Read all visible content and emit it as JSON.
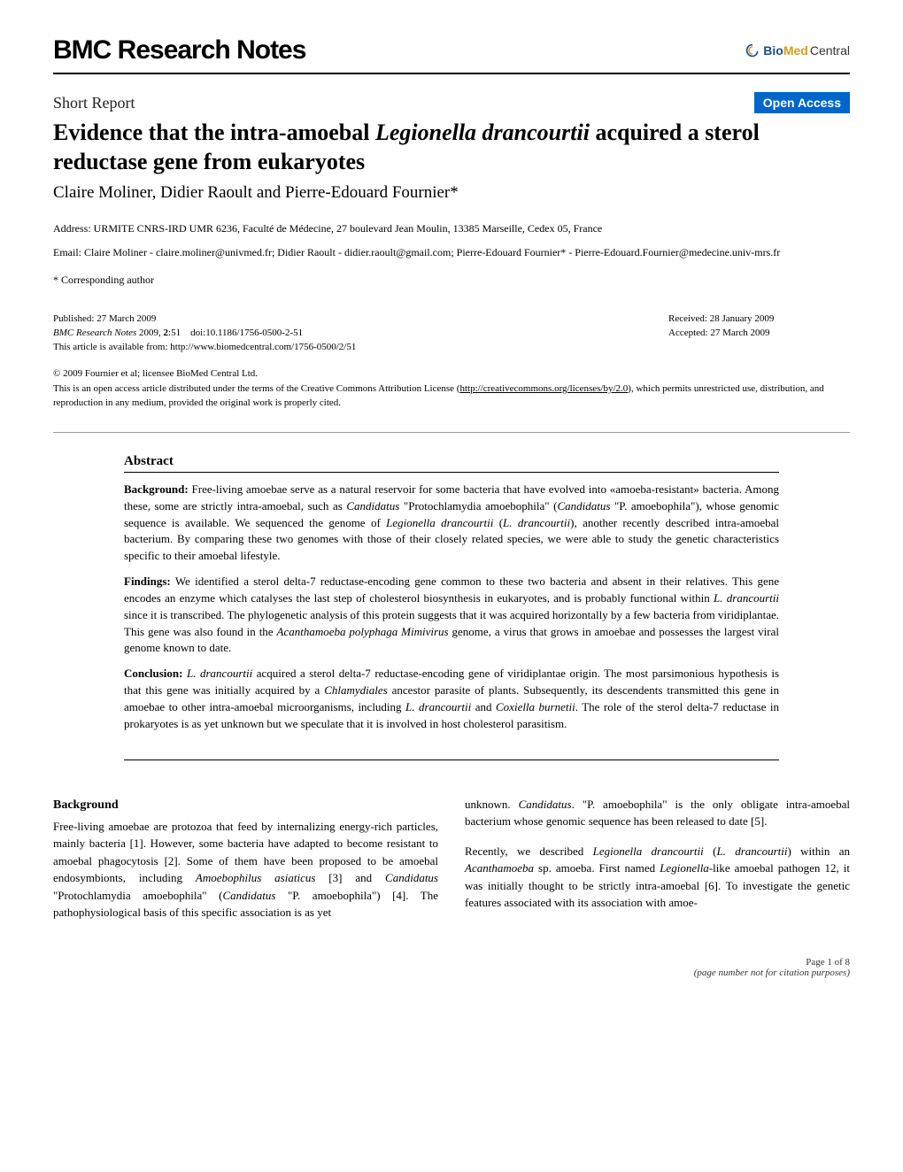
{
  "header": {
    "journal": "BMC Research Notes",
    "logo_bio": "Bio",
    "logo_med": "Med",
    "logo_central": " Central"
  },
  "article": {
    "type": "Short Report",
    "open_access": "Open Access",
    "title_html": "Evidence that the intra-amoebal <em>Legionella drancourtii</em> acquired a sterol reductase gene from eukaryotes",
    "authors": "Claire Moliner, Didier Raoult and Pierre-Edouard Fournier*"
  },
  "address": {
    "line": "Address: URMITE CNRS-IRD UMR 6236, Faculté de Médecine, 27 boulevard Jean Moulin, 13385 Marseille, Cedex 05, France",
    "email": "Email: Claire Moliner - claire.moliner@univmed.fr; Didier Raoult - didier.raoult@gmail.com; Pierre-Edouard Fournier* - Pierre-Edouard.Fournier@medecine.univ-mrs.fr",
    "corresponding": "* Corresponding author"
  },
  "pubinfo": {
    "published": "Published: 27 March 2009",
    "citation_html": "<em>BMC Research Notes</em> 2009, <b>2</b>:51 doi:10.1186/1756-0500-2-51",
    "availability": "This article is available from: http://www.biomedcentral.com/1756-0500/2/51",
    "received": "Received: 28 January 2009",
    "accepted": "Accepted: 27 March 2009"
  },
  "license": {
    "copyright": "© 2009 Fournier et al; licensee BioMed Central Ltd.",
    "text_html": "This is an open access article distributed under the terms of the Creative Commons Attribution License (<span class=\"link\">http://creativecommons.org/licenses/by/2.0</span>), which permits unrestricted use, distribution, and reproduction in any medium, provided the original work is properly cited."
  },
  "abstract": {
    "heading": "Abstract",
    "background_html": "<b>Background:</b> Free-living amoebae serve as a natural reservoir for some bacteria that have evolved into «amoeba-resistant» bacteria. Among these, some are strictly intra-amoebal, such as <em>Candidatus</em> \"Protochlamydia amoebophila\" (<em>Candidatus</em> \"P. amoebophila\"), whose genomic sequence is available. We sequenced the genome of <em>Legionella drancourtii</em> (<em>L. drancourtii</em>), another recently described intra-amoebal bacterium. By comparing these two genomes with those of their closely related species, we were able to study the genetic characteristics specific to their amoebal lifestyle.",
    "findings_html": "<b>Findings:</b> We identified a sterol delta-7 reductase-encoding gene common to these two bacteria and absent in their relatives. This gene encodes an enzyme which catalyses the last step of cholesterol biosynthesis in eukaryotes, and is probably functional within <em>L. drancourtii</em> since it is transcribed. The phylogenetic analysis of this protein suggests that it was acquired horizontally by a few bacteria from viridiplantae. This gene was also found in the <em>Acanthamoeba polyphaga Mimivirus</em> genome, a virus that grows in amoebae and possesses the largest viral genome known to date.",
    "conclusion_html": "<b>Conclusion:</b> <em>L. drancourtii</em> acquired a sterol delta-7 reductase-encoding gene of viridiplantae origin. The most parsimonious hypothesis is that this gene was initially acquired by a <em>Chlamydiales</em> ancestor parasite of plants. Subsequently, its descendents transmitted this gene in amoebae to other intra-amoebal microorganisms, including <em>L. drancourtii</em> and <em>Coxiella burnetii</em>. The role of the sterol delta-7 reductase in prokaryotes is as yet unknown but we speculate that it is involved in host cholesterol parasitism."
  },
  "body": {
    "background_heading": "Background",
    "col1_p1_html": "Free-living amoebae are protozoa that feed by internalizing energy-rich particles, mainly bacteria [1]. However, some bacteria have adapted to become resistant to amoebal phagocytosis [2]. Some of them have been proposed to be amoebal endosymbionts, including <em>Amoebophilus asiaticus</em> [3] and <em>Candidatus</em> \"Protochlamydia amoebophila\" (<em>Candidatus</em> \"P. amoebophila\") [4]. The pathophysiological basis of this specific association is as yet",
    "col2_p1_html": "unknown. <em>Candidatus</em>. \"P. amoebophila\" is the only obligate intra-amoebal bacterium whose genomic sequence has been released to date [5].",
    "col2_p2_html": "Recently, we described <em>Legionella drancourtii</em> (<em>L. drancourtii</em>) within an <em>Acanthamoeba</em> sp. amoeba. First named <em>Legionella</em>-like amoebal pathogen 12, it was initially thought to be strictly intra-amoebal [6]. To investigate the genetic features associated with its association with amoe-"
  },
  "footer": {
    "page": "Page 1 of 8",
    "note": "(page number not for citation purposes)"
  },
  "colors": {
    "open_access_bg": "#0066cc",
    "bio_color": "#1a4d8f",
    "med_color": "#d4a017"
  }
}
